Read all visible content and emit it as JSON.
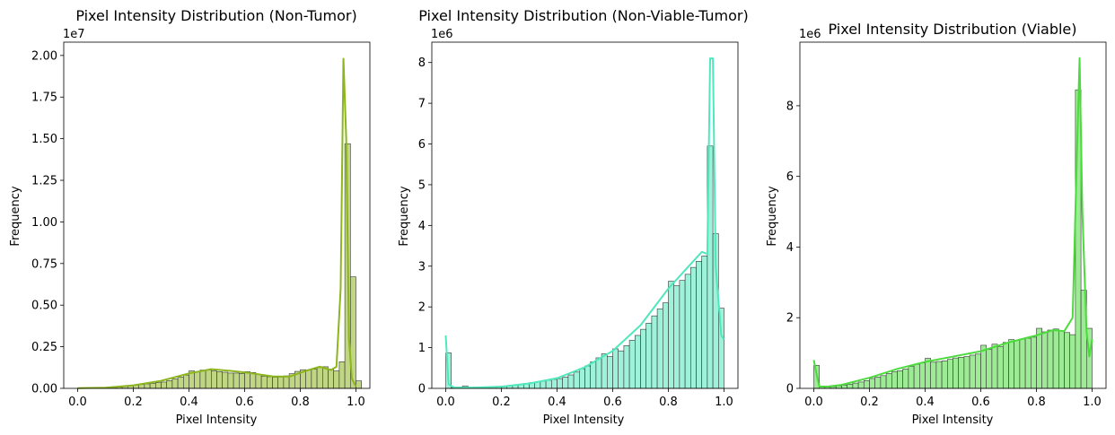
{
  "chart_data": [
    {
      "type": "bar",
      "title": "Pixel Intensity Distribution (Non-Tumor)",
      "xlabel": "Pixel Intensity",
      "ylabel": "Frequency",
      "offset_label": "1e7",
      "color": "#8db51d",
      "xlim": [
        -0.05,
        1.05
      ],
      "ylim": [
        0,
        2.08
      ],
      "xticks": [
        0.0,
        0.2,
        0.4,
        0.6,
        0.8,
        1.0
      ],
      "xtick_labels": [
        "0.0",
        "0.2",
        "0.4",
        "0.6",
        "0.8",
        "1.0"
      ],
      "yticks": [
        0.0,
        0.25,
        0.5,
        0.75,
        1.0,
        1.25,
        1.5,
        1.75,
        2.0
      ],
      "ytick_labels": [
        "0.00",
        "0.25",
        "0.50",
        "0.75",
        "1.00",
        "1.25",
        "1.50",
        "1.75",
        "2.00"
      ],
      "bin_width": 0.02,
      "x": [
        0.0,
        0.02,
        0.04,
        0.06,
        0.08,
        0.1,
        0.12,
        0.14,
        0.16,
        0.18,
        0.2,
        0.22,
        0.24,
        0.26,
        0.28,
        0.3,
        0.32,
        0.34,
        0.36,
        0.38,
        0.4,
        0.42,
        0.44,
        0.46,
        0.48,
        0.5,
        0.52,
        0.54,
        0.56,
        0.58,
        0.6,
        0.62,
        0.64,
        0.66,
        0.68,
        0.7,
        0.72,
        0.74,
        0.76,
        0.78,
        0.8,
        0.82,
        0.84,
        0.86,
        0.88,
        0.9,
        0.92,
        0.94,
        0.96,
        0.98
      ],
      "values": [
        0.01,
        0.01,
        0.01,
        0.02,
        0.03,
        0.04,
        0.06,
        0.08,
        0.12,
        0.15,
        0.19,
        0.23,
        0.27,
        0.3,
        0.34,
        0.38,
        0.47,
        0.57,
        0.68,
        0.8,
        1.05,
        1.0,
        1.1,
        1.1,
        1.05,
        1.0,
        0.97,
        0.92,
        0.92,
        0.9,
        1.0,
        0.95,
        0.83,
        0.73,
        0.7,
        0.67,
        0.68,
        0.75,
        0.88,
        1.02,
        1.12,
        1.1,
        1.15,
        1.25,
        1.3,
        1.15,
        1.05,
        1.6,
        14.7,
        6.7
      ],
      "extra_values": [
        0.45
      ],
      "value_scale": 0.1,
      "kde_x": [
        0.0,
        0.1,
        0.2,
        0.3,
        0.4,
        0.48,
        0.55,
        0.62,
        0.7,
        0.76,
        0.82,
        0.87,
        0.91,
        0.93,
        0.945,
        0.955,
        0.965,
        0.975,
        0.985,
        1.0
      ],
      "kde_y": [
        0.01,
        0.04,
        0.18,
        0.45,
        0.9,
        1.15,
        1.05,
        0.92,
        0.72,
        0.7,
        1.05,
        1.3,
        1.1,
        1.3,
        6.0,
        19.8,
        15.0,
        3.0,
        0.6,
        0.1
      ]
    },
    {
      "type": "bar",
      "title": "Pixel Intensity Distribution (Non-Viable-Tumor)",
      "xlabel": "Pixel Intensity",
      "ylabel": "Frequency",
      "offset_label": "1e6",
      "color": "#4ee8bc",
      "xlim": [
        -0.05,
        1.05
      ],
      "ylim": [
        0,
        8.5
      ],
      "xticks": [
        0.0,
        0.2,
        0.4,
        0.6,
        0.8,
        1.0
      ],
      "xtick_labels": [
        "0.0",
        "0.2",
        "0.4",
        "0.6",
        "0.8",
        "1.0"
      ],
      "yticks": [
        0,
        1,
        2,
        3,
        4,
        5,
        6,
        7,
        8
      ],
      "ytick_labels": [
        "0",
        "1",
        "2",
        "3",
        "4",
        "5",
        "6",
        "7",
        "8"
      ],
      "bin_width": 0.02,
      "x": [
        0.0,
        0.02,
        0.04,
        0.06,
        0.08,
        0.1,
        0.12,
        0.14,
        0.16,
        0.18,
        0.2,
        0.22,
        0.24,
        0.26,
        0.28,
        0.3,
        0.32,
        0.34,
        0.36,
        0.38,
        0.4,
        0.42,
        0.44,
        0.46,
        0.48,
        0.5,
        0.52,
        0.54,
        0.56,
        0.58,
        0.6,
        0.62,
        0.64,
        0.66,
        0.68,
        0.7,
        0.72,
        0.74,
        0.76,
        0.78,
        0.8,
        0.82,
        0.84,
        0.86,
        0.88,
        0.9,
        0.92,
        0.94,
        0.96,
        0.98
      ],
      "values": [
        0.87,
        0.02,
        0.03,
        0.06,
        0.02,
        0.03,
        0.03,
        0.03,
        0.04,
        0.05,
        0.06,
        0.07,
        0.08,
        0.1,
        0.12,
        0.14,
        0.16,
        0.18,
        0.2,
        0.22,
        0.24,
        0.28,
        0.33,
        0.4,
        0.48,
        0.55,
        0.65,
        0.75,
        0.85,
        0.78,
        0.97,
        0.92,
        1.05,
        1.18,
        1.3,
        1.45,
        1.6,
        1.78,
        1.95,
        2.1,
        2.63,
        2.52,
        2.65,
        2.8,
        2.97,
        3.12,
        3.25,
        5.95,
        3.8,
        1.97
      ],
      "extra_values": [],
      "value_scale": 1,
      "kde_x": [
        0.0,
        0.01,
        0.03,
        0.1,
        0.2,
        0.3,
        0.4,
        0.5,
        0.6,
        0.7,
        0.8,
        0.86,
        0.9,
        0.92,
        0.94,
        0.95,
        0.96,
        0.97,
        0.99,
        1.0
      ],
      "kde_y": [
        1.3,
        0.1,
        0.02,
        0.02,
        0.04,
        0.12,
        0.25,
        0.52,
        0.92,
        1.55,
        2.45,
        2.9,
        3.2,
        3.35,
        3.3,
        8.1,
        8.1,
        3.0,
        1.3,
        1.2
      ]
    },
    {
      "type": "bar",
      "title": "Pixel Intensity Distribution (Viable)",
      "xlabel": "Pixel Intensity",
      "ylabel": "Frequency",
      "offset_label": "1e6",
      "color": "#4cdb3c",
      "xlim": [
        -0.05,
        1.05
      ],
      "ylim": [
        0,
        9.8
      ],
      "xticks": [
        0.0,
        0.2,
        0.4,
        0.6,
        0.8,
        1.0
      ],
      "xtick_labels": [
        "0.0",
        "0.2",
        "0.4",
        "0.6",
        "0.8",
        "1.0"
      ],
      "yticks": [
        0,
        2,
        4,
        6,
        8
      ],
      "ytick_labels": [
        "0",
        "2",
        "4",
        "6",
        "8"
      ],
      "bin_width": 0.02,
      "x": [
        0.0,
        0.02,
        0.04,
        0.06,
        0.08,
        0.1,
        0.12,
        0.14,
        0.16,
        0.18,
        0.2,
        0.22,
        0.24,
        0.26,
        0.28,
        0.3,
        0.32,
        0.34,
        0.36,
        0.38,
        0.4,
        0.42,
        0.44,
        0.46,
        0.48,
        0.5,
        0.52,
        0.54,
        0.56,
        0.58,
        0.6,
        0.62,
        0.64,
        0.66,
        0.68,
        0.7,
        0.72,
        0.74,
        0.76,
        0.78,
        0.8,
        0.82,
        0.84,
        0.86,
        0.88,
        0.9,
        0.92,
        0.94,
        0.96,
        0.98
      ],
      "values": [
        0.65,
        0.06,
        0.04,
        0.05,
        0.07,
        0.09,
        0.12,
        0.15,
        0.18,
        0.22,
        0.28,
        0.32,
        0.36,
        0.42,
        0.47,
        0.5,
        0.55,
        0.62,
        0.68,
        0.72,
        0.85,
        0.74,
        0.76,
        0.78,
        0.82,
        0.86,
        0.88,
        0.9,
        0.94,
        0.97,
        1.22,
        1.1,
        1.25,
        1.18,
        1.3,
        1.38,
        1.36,
        1.4,
        1.42,
        1.45,
        1.7,
        1.6,
        1.65,
        1.68,
        1.62,
        1.58,
        1.52,
        8.45,
        2.78,
        1.7
      ],
      "extra_values": [],
      "value_scale": 1,
      "kde_x": [
        0.0,
        0.01,
        0.02,
        0.05,
        0.1,
        0.2,
        0.3,
        0.4,
        0.5,
        0.6,
        0.7,
        0.8,
        0.86,
        0.9,
        0.93,
        0.945,
        0.955,
        0.965,
        0.98,
        0.99,
        1.0
      ],
      "kde_y": [
        0.8,
        0.4,
        0.05,
        0.05,
        0.1,
        0.3,
        0.55,
        0.75,
        0.9,
        1.05,
        1.3,
        1.5,
        1.65,
        1.62,
        2.0,
        6.5,
        9.35,
        5.0,
        1.6,
        0.9,
        1.4
      ]
    }
  ]
}
